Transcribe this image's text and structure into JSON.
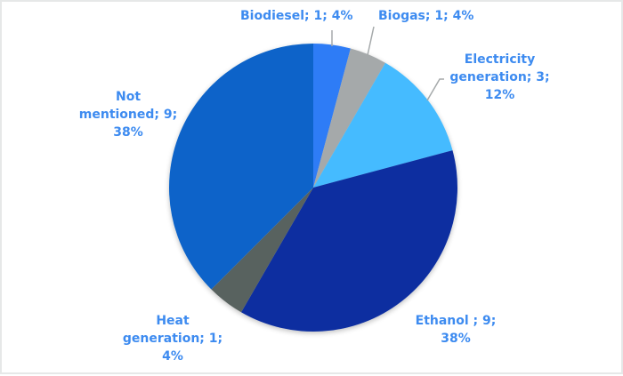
{
  "chart_data": {
    "type": "pie",
    "title": "",
    "start_angle_deg": 0,
    "direction": "clockwise",
    "total": 24,
    "slices": [
      {
        "name": "Biodiesel",
        "value": 1,
        "percent": "4%",
        "color": "#2e7cf6"
      },
      {
        "name": "Biogas",
        "value": 1,
        "percent": "4%",
        "color": "#a5a9aa"
      },
      {
        "name": "Electricity generation",
        "value": 3,
        "percent": "12%",
        "color": "#44bbff"
      },
      {
        "name": "Ethanol ",
        "value": 9,
        "percent": "38%",
        "color": "#0a2ea0"
      },
      {
        "name": "Heat generation",
        "value": 1,
        "percent": "4%",
        "color": "#58625f"
      },
      {
        "name": "Not mentioned",
        "value": 9,
        "percent": "38%",
        "color": "#0863c9"
      }
    ],
    "legend": "none (data labels shown)",
    "data_labels": [
      "Biodiesel; 1; 4%",
      "Biogas; 1; 4%",
      "Electricity generation; 3; 12%",
      "Ethanol ; 9; 38%",
      "Heat generation; 1; 4%",
      "Not mentioned; 9; 38%"
    ]
  },
  "labels": {
    "biodiesel": {
      "line1": "Biodiesel; 1; 4%"
    },
    "biogas": {
      "line1": "Biogas; 1; 4%"
    },
    "electricity": {
      "line1": "Electricity",
      "line2": "generation; 3;",
      "line3": "12%"
    },
    "ethanol": {
      "line1": "Ethanol ; 9;",
      "line2": "38%"
    },
    "heat": {
      "line1": "Heat",
      "line2": "generation; 1;",
      "line3": "4%"
    },
    "not_mentioned": {
      "line1": "Not",
      "line2": "mentioned; 9;",
      "line3": "38%"
    }
  },
  "colors": {
    "label_text": "#3d8bf0",
    "leader_line": "#a5a9aa",
    "border": "#e6e8e8"
  }
}
